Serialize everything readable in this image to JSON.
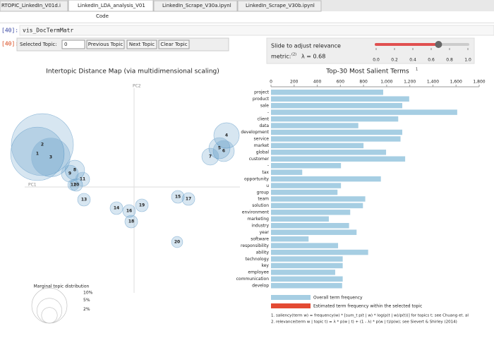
{
  "tabs": [
    "RTOPIC_LinkedIn_V01d.i",
    "LinkedIn_LDA_analysis_V01",
    "LinkedIn_Scrape_V30a.ipynl",
    "LinkedIn_Scrape_V30b.ipynl"
  ],
  "toolbar": {
    "cell_type": "Code"
  },
  "cells": [
    {
      "prompt": "[40]:",
      "code": "vis_DocTermMatr"
    },
    {
      "prompt": "[40]:"
    }
  ],
  "controls": {
    "selected_topic_label": "Selected Topic:",
    "selected_topic_value": "0",
    "buttons": [
      "Previous Topic",
      "Next Topic",
      "Clear Topic"
    ],
    "slider_label": "Slide to adjust relevance",
    "slider_label_2": "metric:",
    "slider_note": "(2)",
    "lambda_label": "λ = 0.68",
    "slider_value": 0.68,
    "slider_lim": [
      0,
      1
    ],
    "slider_ticks": [
      {
        "value": 0,
        "label": "0.0"
      },
      0.2,
      0.4,
      0.6,
      0.8,
      {
        "value": 1,
        "label": "1.0"
      }
    ]
  },
  "chart_data": [
    {
      "type": "scatter",
      "title": "Intertopic Distance Map (via multidimensional scaling)",
      "x_label": "PC1",
      "y_label": "PC2",
      "color": "#1f77b4",
      "labels": [
        "1",
        "2",
        "3",
        "4",
        "5",
        "6",
        "7",
        "8",
        "9",
        "10",
        "11",
        "12",
        "13",
        "14",
        "15",
        "16",
        "17",
        "18",
        "19",
        "20"
      ],
      "x": [
        -137,
        -130,
        -118,
        131,
        121,
        127,
        108,
        -84,
        -91,
        -82,
        -73,
        -86,
        -71,
        -25,
        62,
        -7,
        77,
        -4,
        11,
        61
      ],
      "y": [
        47,
        60,
        42,
        73,
        55,
        51,
        43,
        24,
        19,
        3,
        11,
        3,
        -18,
        -30,
        -14,
        -34,
        -17,
        -49,
        -26,
        -78
      ],
      "sizes": [
        23,
        31,
        12,
        5.2,
        3.6,
        3.6,
        2.3,
        3.1,
        2.3,
        1.3,
        1.6,
        1.0,
        1.3,
        1.3,
        1.3,
        1.3,
        1.3,
        1.3,
        1.3,
        1.0
      ],
      "xlim": [
        -160,
        160
      ],
      "ylim": [
        -155,
        155
      ],
      "size_legend_title": "Marginal topic distribution",
      "size_legend": [
        {
          "value": 2,
          "label": "2%"
        },
        {
          "value": 5,
          "label": "5%"
        },
        {
          "value": 10,
          "label": "10%"
        }
      ]
    },
    {
      "type": "barh",
      "title": "Top-30 Most Salient Terms",
      "title_note": "1",
      "categories": [
        "project",
        "product",
        "sale",
        "-",
        "client",
        "data",
        "development",
        "service",
        "market",
        "global",
        "customer",
        "-",
        "tax",
        "opportunity",
        "u",
        "group",
        "team",
        "solution",
        "environment",
        "marketing",
        "industry",
        "year",
        "software",
        "responsibility",
        "ability",
        "technology",
        "key",
        "employee",
        "communication",
        "develop"
      ],
      "values": [
        970,
        1195,
        1135,
        1610,
        1100,
        755,
        1135,
        1120,
        800,
        995,
        1160,
        605,
        270,
        950,
        605,
        575,
        815,
        795,
        685,
        500,
        675,
        740,
        325,
        580,
        840,
        620,
        620,
        555,
        620,
        615
      ],
      "color": "#a6cee3",
      "topic_color": "#e34a33",
      "xlim": [
        0,
        1800
      ],
      "xticks": [
        0,
        200,
        400,
        600,
        800,
        {
          "value": 1000,
          "label": "1,000"
        },
        {
          "value": 1200,
          "label": "1,200"
        },
        {
          "value": 1400,
          "label": "1,400"
        },
        {
          "value": 1600,
          "label": "1,600"
        },
        {
          "value": 1800,
          "label": "1,800"
        }
      ],
      "legend": [
        "Overall term frequency",
        "Estimated term frequency within the selected topic"
      ],
      "footnotes": [
        "1. saliency(term w) = frequency(w) * [sum_t p(t | w) * log(p(t | w)/p(t))] for topics t; see Chuang et. al",
        "2. relevance(term w | topic t) = λ * p(w | t) + (1 - λ) * p(w | t)/p(w); see Sievert & Shirley (2014)"
      ]
    }
  ]
}
